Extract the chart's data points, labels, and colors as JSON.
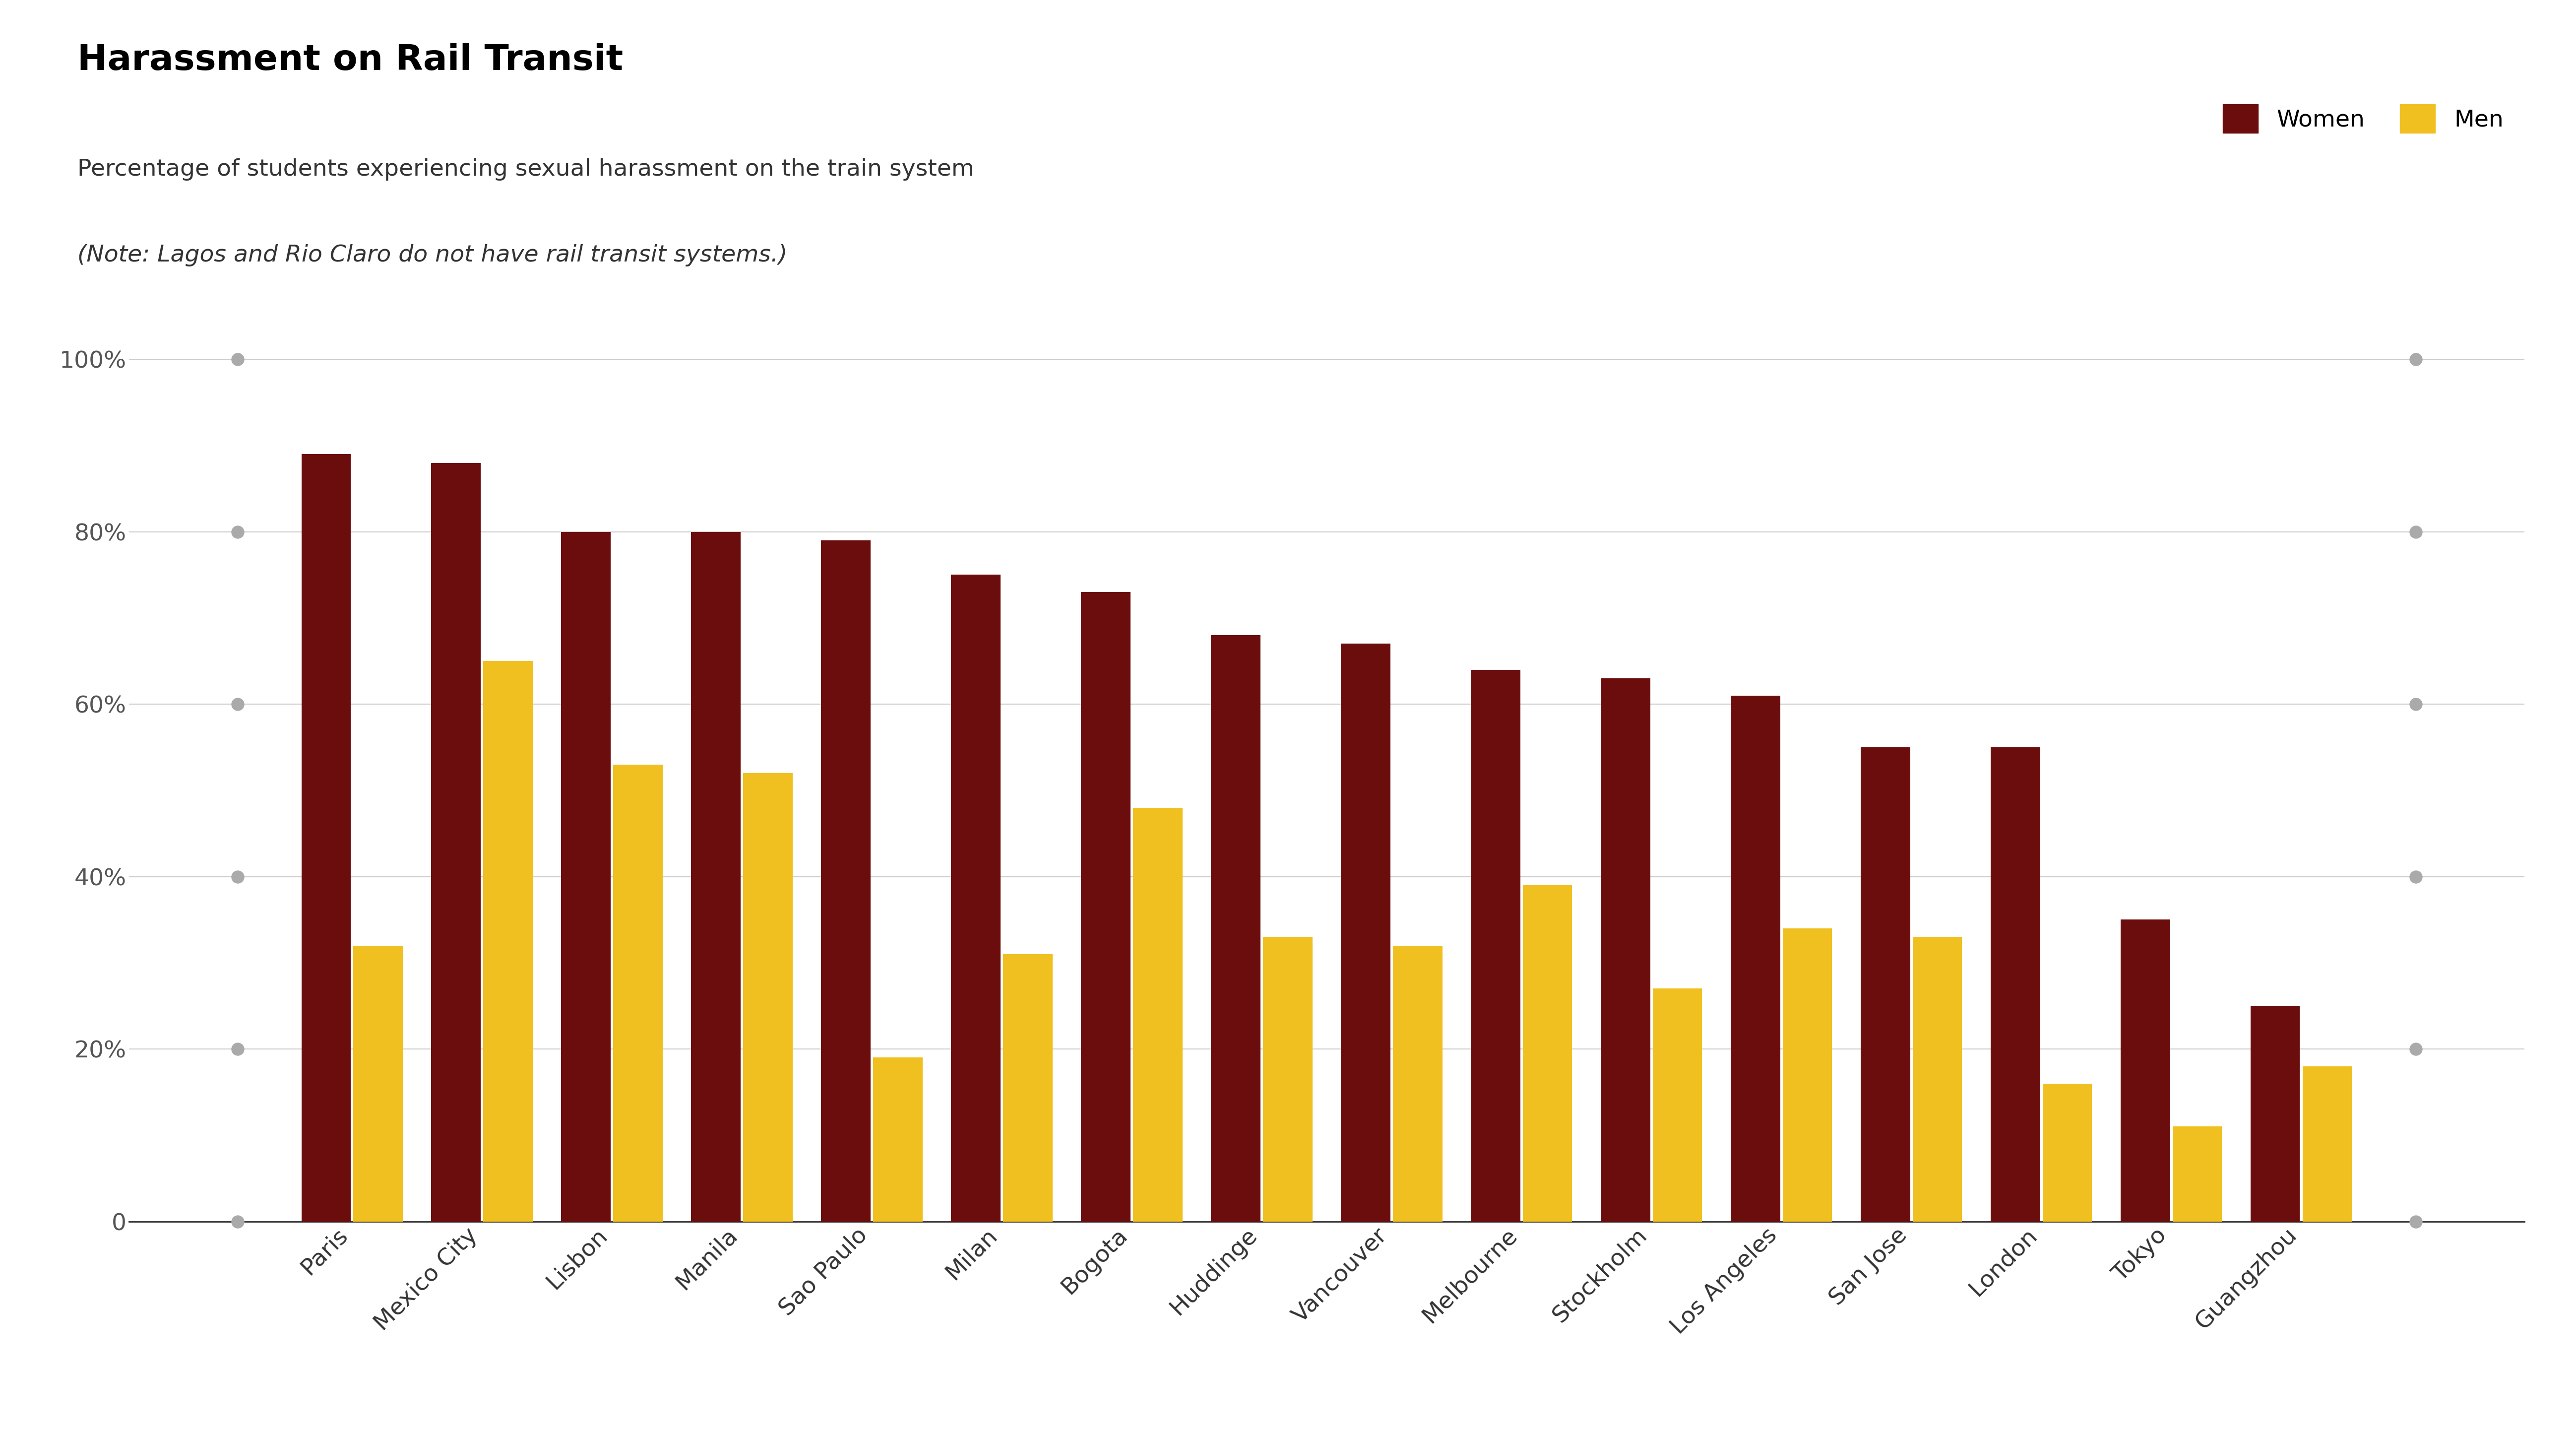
{
  "title": "Harassment on Rail Transit",
  "subtitle_line1": "Percentage of students experiencing sexual harassment on the train system",
  "subtitle_line2": "(Note: Lagos and Rio Claro do not have rail transit systems.)",
  "categories": [
    "Paris",
    "Mexico City",
    "Lisbon",
    "Manila",
    "Sao Paulo",
    "Milan",
    "Bogota",
    "Huddinge",
    "Vancouver",
    "Melbourne",
    "Stockholm",
    "Los Angeles",
    "San Jose",
    "London",
    "Tokyo",
    "Guangzhou"
  ],
  "women": [
    89,
    88,
    80,
    80,
    79,
    75,
    73,
    68,
    67,
    64,
    63,
    61,
    55,
    55,
    35,
    25
  ],
  "men": [
    32,
    65,
    53,
    52,
    19,
    31,
    48,
    33,
    32,
    39,
    27,
    34,
    33,
    16,
    11,
    18
  ],
  "women_color": "#6B0D0D",
  "men_color": "#F0C020",
  "background_color": "#FFFFFF",
  "title_fontsize": 52,
  "subtitle_fontsize": 34,
  "legend_fontsize": 34,
  "tick_fontsize": 34,
  "label_fontsize": 34,
  "ylim": [
    0,
    100
  ],
  "yticks": [
    0,
    20,
    40,
    60,
    80,
    100
  ],
  "ytick_labels": [
    "0",
    "20%",
    "40%",
    "60%",
    "80%",
    "100%"
  ]
}
